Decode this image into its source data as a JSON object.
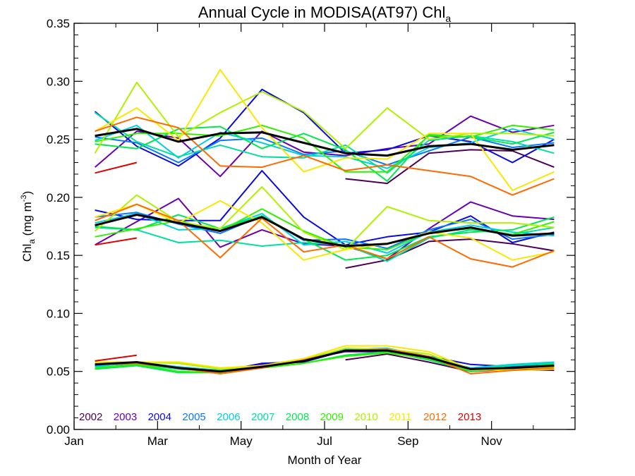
{
  "chart_data": {
    "type": "line",
    "title": "Annual Cycle in MODISA(AT97) Chl",
    "title_subscript": "a",
    "xlabel": "Month of Year",
    "ylabel_main": "Chl",
    "ylabel_sub": "a",
    "ylabel_unit_open": " (mg m",
    "ylabel_unit_sup": "-3",
    "ylabel_unit_close": ")",
    "x_tick_labels": [
      "Jan",
      "Mar",
      "May",
      "Jul",
      "Sep",
      "Nov"
    ],
    "x_tick_values": [
      1,
      3,
      5,
      7,
      9,
      11
    ],
    "xlim": [
      1,
      13
    ],
    "ylim": [
      0,
      0.35
    ],
    "y_ticks": [
      0.0,
      0.05,
      0.1,
      0.15,
      0.2,
      0.25,
      0.3,
      0.35
    ],
    "y_tick_labels": [
      "0.00",
      "0.05",
      "0.10",
      "0.15",
      "0.20",
      "0.25",
      "0.30",
      "0.35"
    ],
    "legend_position": "bottom-left",
    "years": [
      "2002",
      "2003",
      "2004",
      "2005",
      "2006",
      "2007",
      "2008",
      "2009",
      "2010",
      "2011",
      "2012",
      "2013"
    ],
    "colors": {
      "2002": "#4b0055",
      "2003": "#6a00b0",
      "2004": "#0a0ae0",
      "2005": "#0a78ff",
      "2006": "#00d0e0",
      "2007": "#00e0a0",
      "2008": "#00e850",
      "2009": "#30f000",
      "2010": "#b0f000",
      "2011": "#f8e800",
      "2012": "#ff6a00",
      "2013": "#e00000",
      "Mean": "#000000"
    },
    "x": [
      1.5,
      2.5,
      3.5,
      4.5,
      5.5,
      6.5,
      7.5,
      8.5,
      9.5,
      10.5,
      11.5,
      12.5
    ],
    "groups": [
      {
        "name": "upper",
        "series": [
          {
            "year": "2002",
            "values": [
              null,
              null,
              null,
              null,
              null,
              null,
              0.216,
              0.212,
              0.238,
              0.241,
              0.24,
              0.226
            ]
          },
          {
            "year": "2003",
            "values": [
              0.226,
              0.257,
              0.251,
              0.218,
              0.257,
              0.239,
              0.236,
              0.242,
              0.246,
              0.27,
              0.256,
              0.262
            ]
          },
          {
            "year": "2004",
            "values": [
              0.274,
              0.244,
              0.227,
              0.251,
              0.293,
              0.273,
              0.238,
              0.241,
              0.253,
              0.248,
              0.23,
              0.25
            ]
          },
          {
            "year": "2005",
            "values": [
              0.252,
              0.247,
              0.23,
              0.249,
              0.251,
              0.237,
              0.24,
              0.228,
              0.24,
              0.252,
              0.243,
              0.247
            ]
          },
          {
            "year": "2006",
            "values": [
              0.249,
              0.262,
              0.234,
              0.256,
              0.247,
              0.236,
              0.235,
              0.225,
              0.243,
              0.247,
              0.259,
              0.25
            ]
          },
          {
            "year": "2007",
            "values": [
              0.273,
              0.248,
              0.235,
              0.245,
              0.235,
              0.234,
              0.245,
              0.221,
              0.249,
              0.253,
              0.248,
              0.238
            ]
          },
          {
            "year": "2008",
            "values": [
              0.246,
              0.242,
              0.259,
              0.261,
              0.242,
              0.255,
              0.241,
              0.214,
              0.254,
              0.252,
              0.246,
              0.256
            ]
          },
          {
            "year": "2009",
            "values": [
              0.248,
              0.255,
              0.255,
              0.253,
              0.262,
              0.251,
              0.222,
              0.222,
              0.253,
              0.252,
              0.262,
              0.258
            ]
          },
          {
            "year": "2010",
            "values": [
              0.238,
              0.299,
              0.252,
              0.273,
              0.291,
              0.274,
              0.242,
              0.277,
              0.25,
              0.255,
              0.255,
              0.253
            ]
          },
          {
            "year": "2011",
            "values": [
              0.257,
              0.277,
              0.249,
              0.31,
              0.26,
              0.222,
              0.234,
              0.233,
              0.255,
              0.255,
              0.206,
              0.222
            ]
          },
          {
            "year": "2012",
            "values": [
              0.257,
              0.269,
              0.26,
              0.227,
              0.226,
              0.236,
              0.223,
              0.228,
              0.223,
              0.218,
              0.202,
              0.216
            ]
          },
          {
            "year": "2013",
            "values": [
              0.221,
              0.23,
              null,
              null,
              null,
              null,
              null,
              null,
              null,
              null,
              null,
              null
            ]
          }
        ],
        "mean": [
          0.253,
          0.259,
          0.248,
          0.255,
          0.256,
          0.247,
          0.238,
          0.236,
          0.244,
          0.246,
          0.241,
          0.245
        ]
      },
      {
        "name": "middle",
        "series": [
          {
            "year": "2002",
            "values": [
              null,
              null,
              null,
              null,
              null,
              null,
              0.139,
              0.146,
              0.162,
              0.164,
              0.16,
              0.154
            ]
          },
          {
            "year": "2003",
            "values": [
              0.159,
              0.179,
              0.199,
              0.157,
              0.172,
              0.16,
              0.158,
              0.147,
              0.173,
              0.196,
              0.184,
              0.181
            ]
          },
          {
            "year": "2004",
            "values": [
              0.189,
              0.181,
              0.18,
              0.18,
              0.223,
              0.183,
              0.159,
              0.166,
              0.17,
              0.184,
              0.161,
              0.17
            ]
          },
          {
            "year": "2005",
            "values": [
              0.183,
              0.187,
              0.177,
              0.169,
              0.184,
              0.163,
              0.164,
              0.156,
              0.172,
              0.181,
              0.164,
              0.168
            ]
          },
          {
            "year": "2006",
            "values": [
              0.178,
              0.186,
              0.172,
              0.173,
              0.186,
              0.159,
              0.162,
              0.152,
              0.17,
              0.176,
              0.17,
              0.167
            ]
          },
          {
            "year": "2007",
            "values": [
              0.174,
              0.172,
              0.161,
              0.163,
              0.158,
              0.161,
              0.159,
              0.145,
              0.165,
              0.172,
              0.168,
              0.174
            ]
          },
          {
            "year": "2008",
            "values": [
              0.175,
              0.172,
              0.185,
              0.173,
              0.184,
              0.164,
              0.146,
              0.15,
              0.166,
              0.17,
              0.172,
              0.183
            ]
          },
          {
            "year": "2009",
            "values": [
              0.166,
              0.173,
              0.18,
              0.171,
              0.19,
              0.171,
              0.157,
              0.155,
              0.17,
              0.173,
              0.168,
              0.179
            ]
          },
          {
            "year": "2010",
            "values": [
              0.171,
              0.202,
              0.179,
              0.173,
              0.209,
              0.17,
              0.155,
              0.192,
              0.18,
              0.178,
              0.178,
              0.174
            ]
          },
          {
            "year": "2011",
            "values": [
              0.183,
              0.194,
              0.178,
              0.197,
              0.178,
              0.146,
              0.155,
              0.16,
              0.17,
              0.165,
              0.146,
              0.153
            ]
          },
          {
            "year": "2012",
            "values": [
              0.18,
              0.194,
              0.18,
              0.148,
              0.182,
              0.153,
              0.159,
              0.147,
              0.166,
              0.147,
              0.14,
              0.154
            ]
          },
          {
            "year": "2013",
            "values": [
              0.159,
              0.165,
              null,
              null,
              null,
              null,
              null,
              null,
              null,
              null,
              null,
              null
            ]
          }
        ],
        "mean": [
          0.176,
          0.185,
          0.178,
          0.171,
          0.183,
          0.164,
          0.158,
          0.16,
          0.169,
          0.174,
          0.167,
          0.169
        ]
      },
      {
        "name": "lower",
        "series": [
          {
            "year": "2002",
            "values": [
              null,
              null,
              null,
              null,
              null,
              null,
              0.06,
              0.065,
              0.058,
              0.05,
              0.052,
              0.051
            ]
          },
          {
            "year": "2003",
            "values": [
              0.056,
              0.058,
              0.053,
              0.05,
              0.056,
              0.06,
              0.067,
              0.067,
              0.06,
              0.051,
              0.053,
              0.054
            ]
          },
          {
            "year": "2004",
            "values": [
              0.055,
              0.057,
              0.052,
              0.05,
              0.057,
              0.058,
              0.068,
              0.069,
              0.063,
              0.056,
              0.054,
              0.056
            ]
          },
          {
            "year": "2005",
            "values": [
              0.055,
              0.057,
              0.053,
              0.05,
              0.055,
              0.06,
              0.068,
              0.069,
              0.062,
              0.053,
              0.055,
              0.057
            ]
          },
          {
            "year": "2006",
            "values": [
              0.054,
              0.058,
              0.054,
              0.051,
              0.055,
              0.061,
              0.069,
              0.07,
              0.063,
              0.053,
              0.056,
              0.058
            ]
          },
          {
            "year": "2007",
            "values": [
              0.053,
              0.056,
              0.052,
              0.05,
              0.054,
              0.059,
              0.068,
              0.068,
              0.061,
              0.052,
              0.055,
              0.057
            ]
          },
          {
            "year": "2008",
            "values": [
              0.052,
              0.055,
              0.049,
              0.049,
              0.053,
              0.057,
              0.064,
              0.067,
              0.06,
              0.05,
              0.053,
              0.056
            ]
          },
          {
            "year": "2009",
            "values": [
              0.053,
              0.056,
              0.05,
              0.049,
              0.053,
              0.057,
              0.063,
              0.066,
              0.061,
              0.051,
              0.052,
              0.055
            ]
          },
          {
            "year": "2010",
            "values": [
              0.057,
              0.058,
              0.057,
              0.052,
              0.054,
              0.06,
              0.07,
              0.069,
              0.065,
              0.051,
              0.052,
              0.054
            ]
          },
          {
            "year": "2011",
            "values": [
              0.058,
              0.058,
              0.058,
              0.053,
              0.055,
              0.061,
              0.072,
              0.072,
              0.067,
              0.052,
              0.051,
              0.052
            ]
          },
          {
            "year": "2012",
            "values": [
              0.056,
              0.057,
              0.053,
              0.048,
              0.053,
              0.06,
              0.068,
              0.069,
              0.063,
              0.048,
              0.051,
              0.053
            ]
          },
          {
            "year": "2013",
            "values": [
              0.059,
              0.064,
              null,
              null,
              null,
              null,
              null,
              null,
              null,
              null,
              null,
              null
            ]
          }
        ],
        "mean": [
          0.056,
          0.058,
          0.053,
          0.05,
          0.054,
          0.059,
          0.068,
          0.068,
          0.062,
          0.052,
          0.053,
          0.055
        ]
      }
    ]
  }
}
